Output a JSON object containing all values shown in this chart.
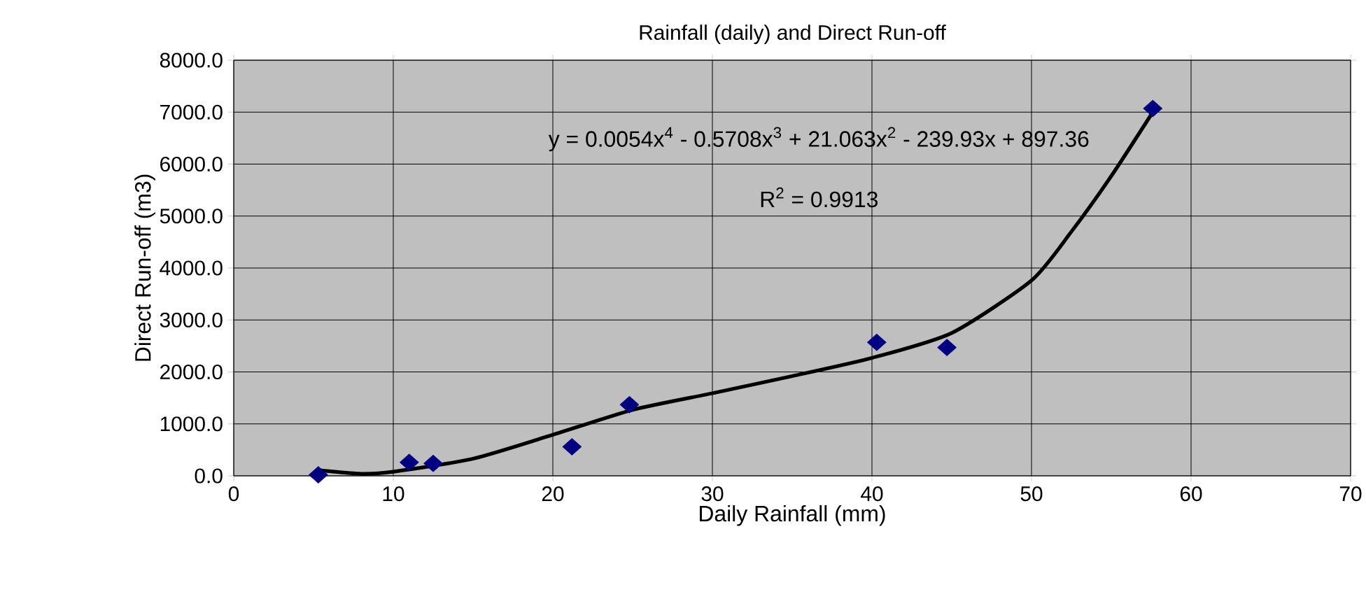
{
  "chart_data": {
    "type": "scatter",
    "title": "Rainfall (daily) and Direct Run-off",
    "xlabel": "Daily Rainfall (mm)",
    "ylabel": "Direct Run-off (m3)",
    "xlim": [
      0,
      70
    ],
    "xticks": [
      0,
      10,
      20,
      30,
      40,
      50,
      60,
      70
    ],
    "ylim": [
      0,
      8000
    ],
    "yticks": [
      {
        "value": 0,
        "label": "0.0"
      },
      {
        "value": 1000,
        "label": "1000.0"
      },
      {
        "value": 2000,
        "label": "2000.0"
      },
      {
        "value": 3000,
        "label": "3000.0"
      },
      {
        "value": 4000,
        "label": "4000.0"
      },
      {
        "value": 5000,
        "label": "5000.0"
      },
      {
        "value": 6000,
        "label": "6000.0"
      },
      {
        "value": 7000,
        "label": "7000.0"
      },
      {
        "value": 8000,
        "label": "8000.0"
      }
    ],
    "grid": true,
    "marker": "diamond",
    "annotations": [
      "y = 0.0054x$^{4}$ - 0.5708x$^{3}$ + 21.063x$^{2}$ - 239.93x + 897.36",
      "R$^{2}$ = 0.9913"
    ],
    "series": [
      {
        "color": "#000080",
        "x": [
          5.3,
          11.0,
          12.5,
          21.2,
          24.8,
          40.3,
          44.7,
          57.6
        ],
        "values": [
          20,
          260,
          240,
          560,
          1370,
          2570,
          2470,
          7070
        ]
      },
      {
        "type": "line",
        "color": "#000000",
        "marker": "none",
        "line_style": "solid",
        "x": [
          5.3,
          8,
          10,
          15,
          20,
          25,
          30,
          35,
          40,
          45,
          50,
          52.5,
          55,
          57.6
        ],
        "values": [
          110,
          40,
          80,
          330,
          790,
          1270,
          1590,
          1920,
          2270,
          2750,
          3760,
          4700,
          5770,
          7000
        ]
      }
    ]
  }
}
